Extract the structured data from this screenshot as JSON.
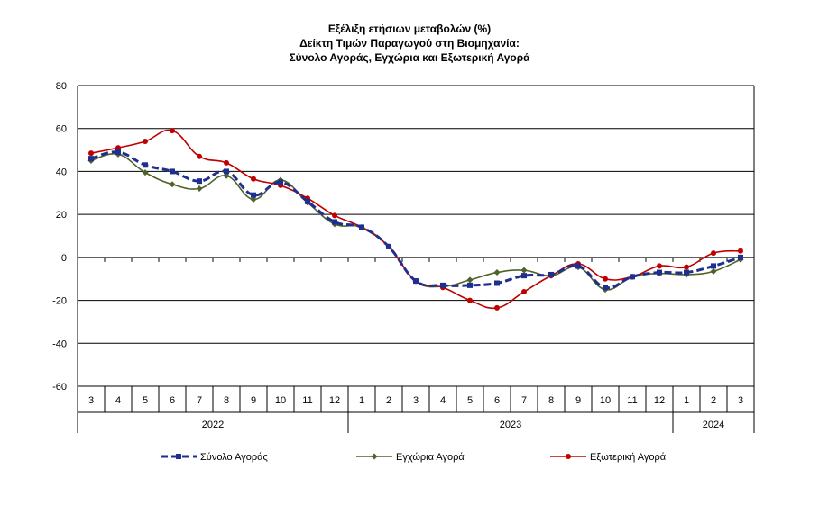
{
  "chart_data": {
    "type": "line",
    "title_lines": [
      "Εξέλιξη ετήσιων μεταβολών (%)",
      "Δείκτη Τιμών Παραγωγού στη Βιομηχανία:",
      "Σύνολο Αγοράς, Εγχώρια και Εξωτερική Αγορά"
    ],
    "xlabel": "",
    "ylabel": "",
    "ylim": [
      -60,
      80
    ],
    "yticks": [
      80,
      60,
      40,
      20,
      0,
      -20,
      -40,
      -60
    ],
    "categories": [
      "3",
      "4",
      "5",
      "6",
      "7",
      "8",
      "9",
      "10",
      "11",
      "12",
      "1",
      "2",
      "3",
      "4",
      "5",
      "6",
      "7",
      "8",
      "9",
      "10",
      "11",
      "12",
      "1",
      "2",
      "3"
    ],
    "year_groups": [
      {
        "label": "2022",
        "count": 10
      },
      {
        "label": "2023",
        "count": 12
      },
      {
        "label": "2024",
        "count": 3
      }
    ],
    "grid": "horizontal",
    "legend_position": "bottom",
    "series": [
      {
        "name": "Σύνολο Αγοράς",
        "color": "#1f2f8f",
        "style": "dashed",
        "marker": "square",
        "values": [
          46,
          49,
          43,
          40,
          35.5,
          40,
          29,
          35,
          26,
          16.5,
          14,
          5,
          -11,
          -13,
          -13,
          -12,
          -8.5,
          -8,
          -4,
          -14,
          -9,
          -7,
          -7,
          -4,
          0
        ]
      },
      {
        "name": "Εγχώρια Αγορά",
        "color": "#4f6228",
        "style": "solid",
        "marker": "diamond",
        "values": [
          45,
          48,
          39.5,
          34,
          32,
          38,
          27,
          36,
          25.5,
          15.5,
          14,
          5,
          -11,
          -13.5,
          -10.5,
          -7,
          -6,
          -8.5,
          -4.5,
          -15,
          -9,
          -7.5,
          -8,
          -6.5,
          -1
        ]
      },
      {
        "name": "Εξωτερική Αγορά",
        "color": "#c00000",
        "style": "solid",
        "marker": "circle",
        "values": [
          48.5,
          51,
          54,
          59,
          47,
          44,
          36.5,
          33.5,
          27.5,
          19.5,
          14,
          5,
          -11,
          -14,
          -20,
          -23.5,
          -16,
          -8.5,
          -3,
          -10,
          -9,
          -4,
          -4.5,
          2,
          3
        ]
      }
    ]
  }
}
